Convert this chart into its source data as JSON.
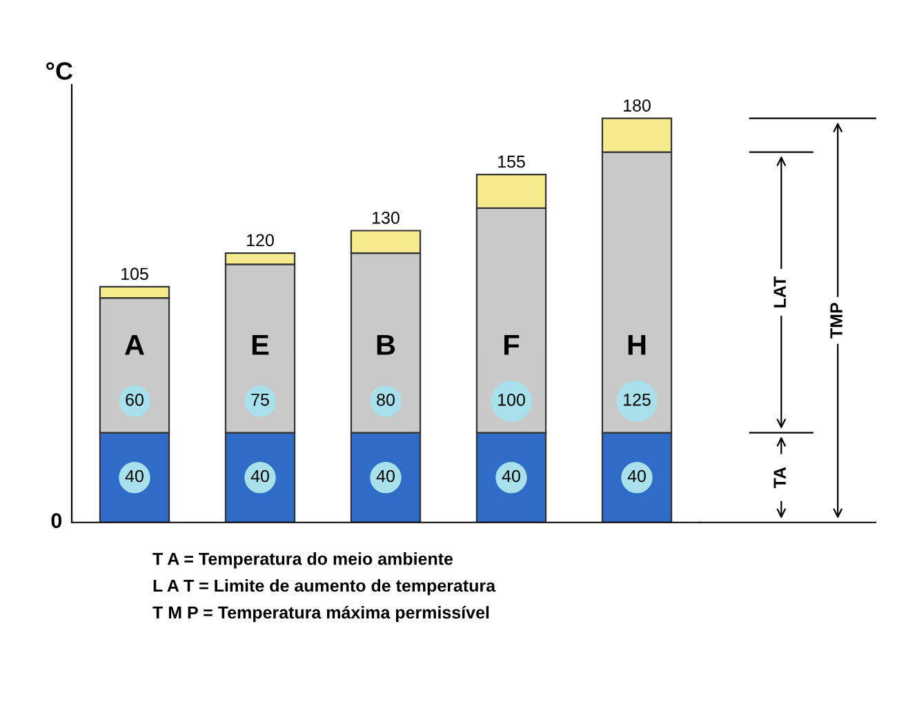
{
  "chart_data": {
    "type": "bar",
    "stacked": true,
    "ylabel": "°C",
    "categories": [
      "A",
      "E",
      "B",
      "F",
      "H"
    ],
    "series": [
      {
        "color": "#2e6cc7",
        "values": [
          40,
          40,
          40,
          40,
          40
        ],
        "value_labels": [
          "40",
          "40",
          "40",
          "40",
          "40"
        ]
      },
      {
        "color": "#c9c9c9",
        "values": [
          60,
          75,
          80,
          100,
          125
        ],
        "value_labels": [
          "60",
          "75",
          "80",
          "100",
          "125"
        ]
      },
      {
        "color": "#f5ea8c",
        "values": [
          5,
          5,
          10,
          15,
          15
        ],
        "value_labels": [
          null,
          null,
          null,
          null,
          null
        ]
      }
    ],
    "totals": [
      "105",
      "120",
      "130",
      "155",
      "180"
    ],
    "ylim": [
      0,
      195
    ],
    "annotations": [
      "0",
      "LAT",
      "TMP",
      "TA",
      "T A = Temperatura do meio ambiente",
      "L A T = Limite de aumento de temperatura",
      "T M P = Temperatura máxima permissível"
    ]
  }
}
